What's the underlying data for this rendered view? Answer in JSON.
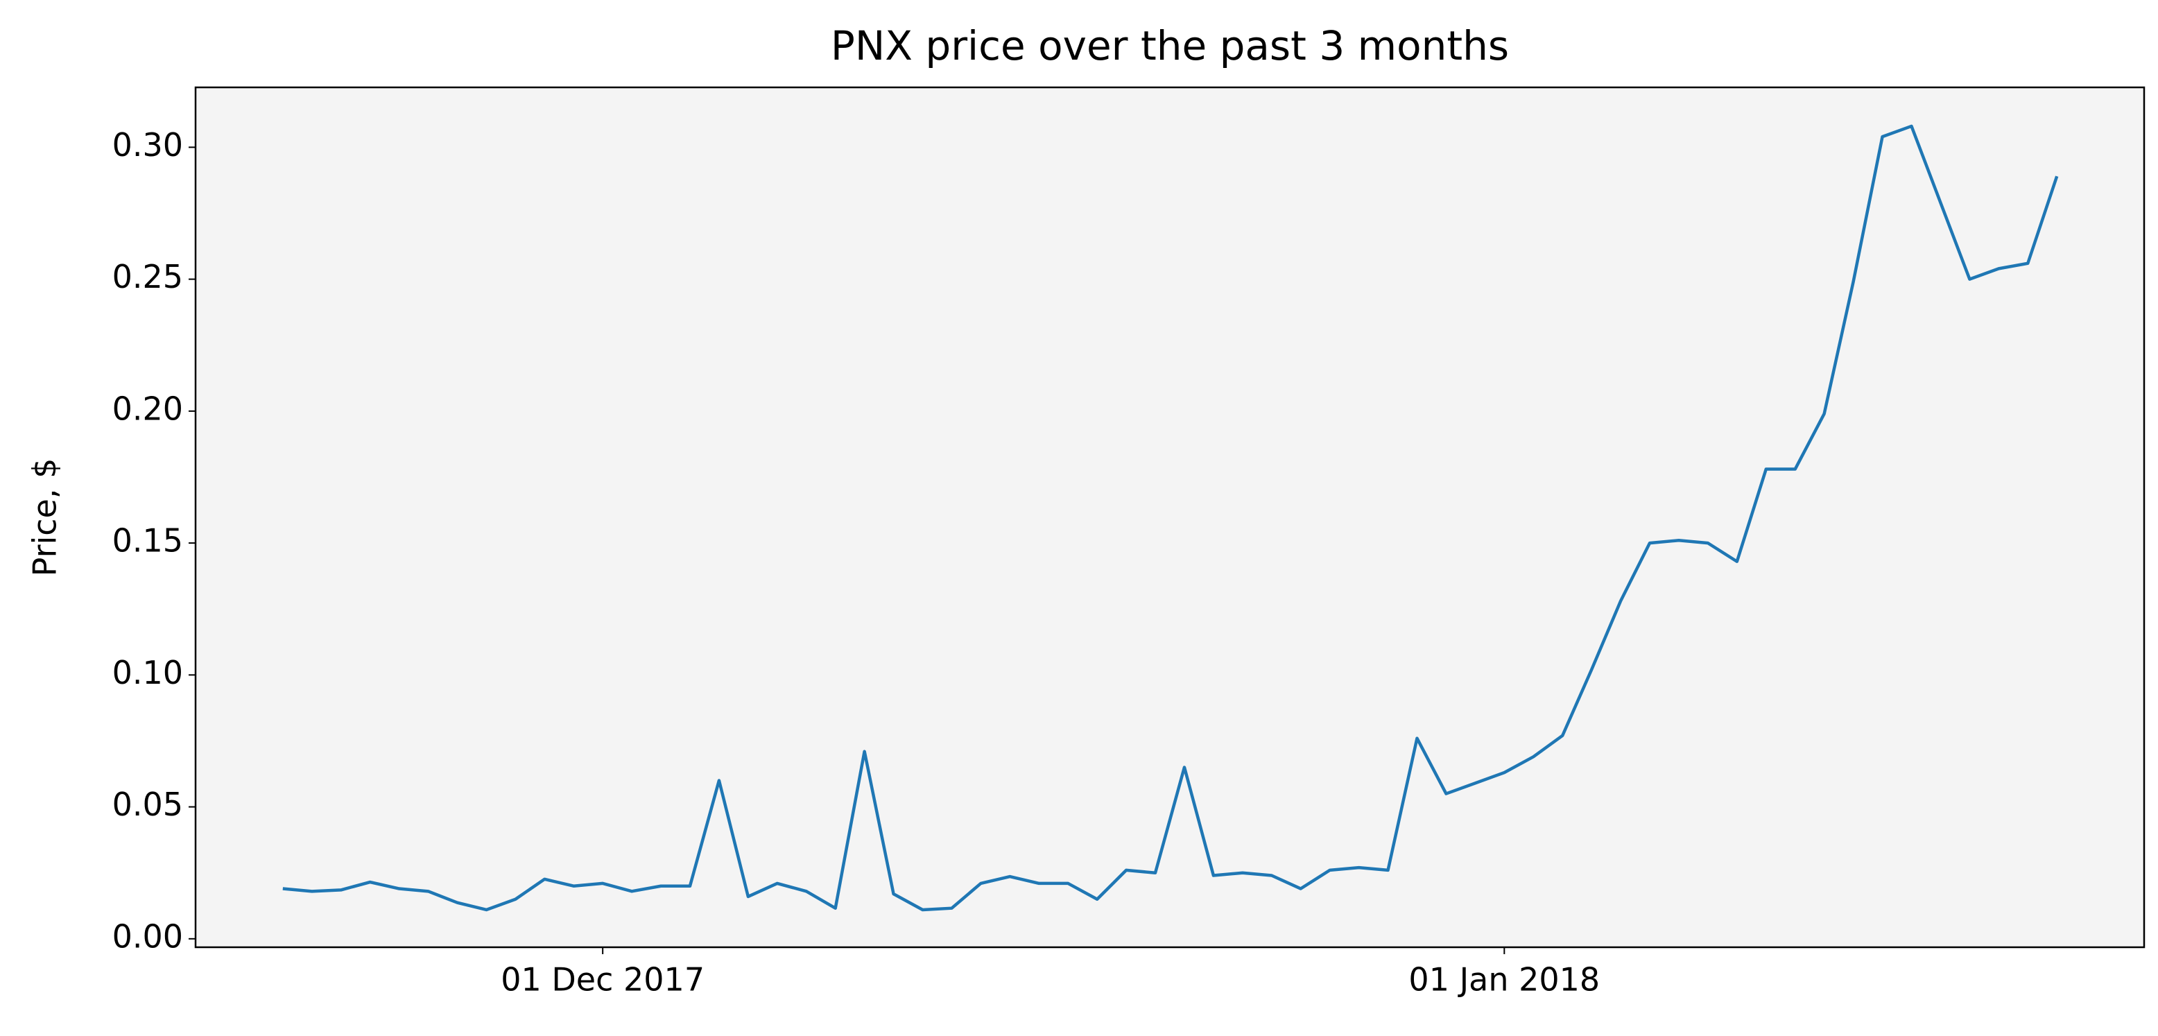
{
  "chart_data": {
    "type": "line",
    "title": "PNX price over the past 3 months",
    "ylabel": "Price, $",
    "x": [
      "2017-11-20",
      "2017-11-21",
      "2017-11-22",
      "2017-11-23",
      "2017-11-24",
      "2017-11-25",
      "2017-11-26",
      "2017-11-27",
      "2017-11-28",
      "2017-11-29",
      "2017-11-30",
      "2017-12-01",
      "2017-12-02",
      "2017-12-03",
      "2017-12-04",
      "2017-12-05",
      "2017-12-06",
      "2017-12-07",
      "2017-12-08",
      "2017-12-09",
      "2017-12-10",
      "2017-12-11",
      "2017-12-12",
      "2017-12-13",
      "2017-12-14",
      "2017-12-15",
      "2017-12-16",
      "2017-12-17",
      "2017-12-18",
      "2017-12-19",
      "2017-12-20",
      "2017-12-21",
      "2017-12-22",
      "2017-12-23",
      "2017-12-24",
      "2017-12-25",
      "2017-12-26",
      "2017-12-27",
      "2017-12-28",
      "2017-12-29",
      "2017-12-30",
      "2017-12-31",
      "2018-01-01",
      "2018-01-02",
      "2018-01-03",
      "2018-01-04",
      "2018-01-05",
      "2018-01-06",
      "2018-01-07",
      "2018-01-08",
      "2018-01-09",
      "2018-01-10",
      "2018-01-11",
      "2018-01-12",
      "2018-01-13",
      "2018-01-14",
      "2018-01-15",
      "2018-01-16",
      "2018-01-17",
      "2018-01-18",
      "2018-01-19",
      "2018-01-20"
    ],
    "series": [
      {
        "name": "PNX",
        "color": "#1f77b4",
        "values": [
          0.019,
          0.018,
          0.0185,
          0.0215,
          0.019,
          0.018,
          0.0137,
          0.011,
          0.015,
          0.0226,
          0.02,
          0.021,
          0.018,
          0.02,
          0.02,
          0.06,
          0.016,
          0.021,
          0.018,
          0.0116,
          0.071,
          0.017,
          0.011,
          0.0116,
          0.021,
          0.0236,
          0.021,
          0.021,
          0.015,
          0.026,
          0.025,
          0.065,
          0.024,
          0.025,
          0.024,
          0.019,
          0.026,
          0.027,
          0.026,
          0.076,
          0.055,
          0.059,
          0.063,
          0.069,
          0.077,
          0.102,
          0.128,
          0.15,
          0.151,
          0.15,
          0.143,
          0.178,
          0.178,
          0.199,
          0.249,
          0.304,
          0.308,
          0.279,
          0.25,
          0.254,
          0.256,
          0.289
        ]
      }
    ],
    "xlim": [
      "2017-11-17",
      "2018-01-23"
    ],
    "xticks": [
      {
        "value": "2017-12-01",
        "label": "01 Dec 2017"
      },
      {
        "value": "2018-01-01",
        "label": "01 Jan 2018"
      }
    ],
    "ylim": [
      -0.0032,
      0.3227
    ],
    "yticks": [
      {
        "value": 0,
        "label": "0.00"
      },
      {
        "value": 0.05,
        "label": "0.05"
      },
      {
        "value": 0.1,
        "label": "0.10"
      },
      {
        "value": 0.15,
        "label": "0.15"
      },
      {
        "value": 0.2,
        "label": "0.20"
      },
      {
        "value": 0.25,
        "label": "0.25"
      },
      {
        "value": 0.3,
        "label": "0.30"
      }
    ],
    "background": "#f4f4f4"
  }
}
